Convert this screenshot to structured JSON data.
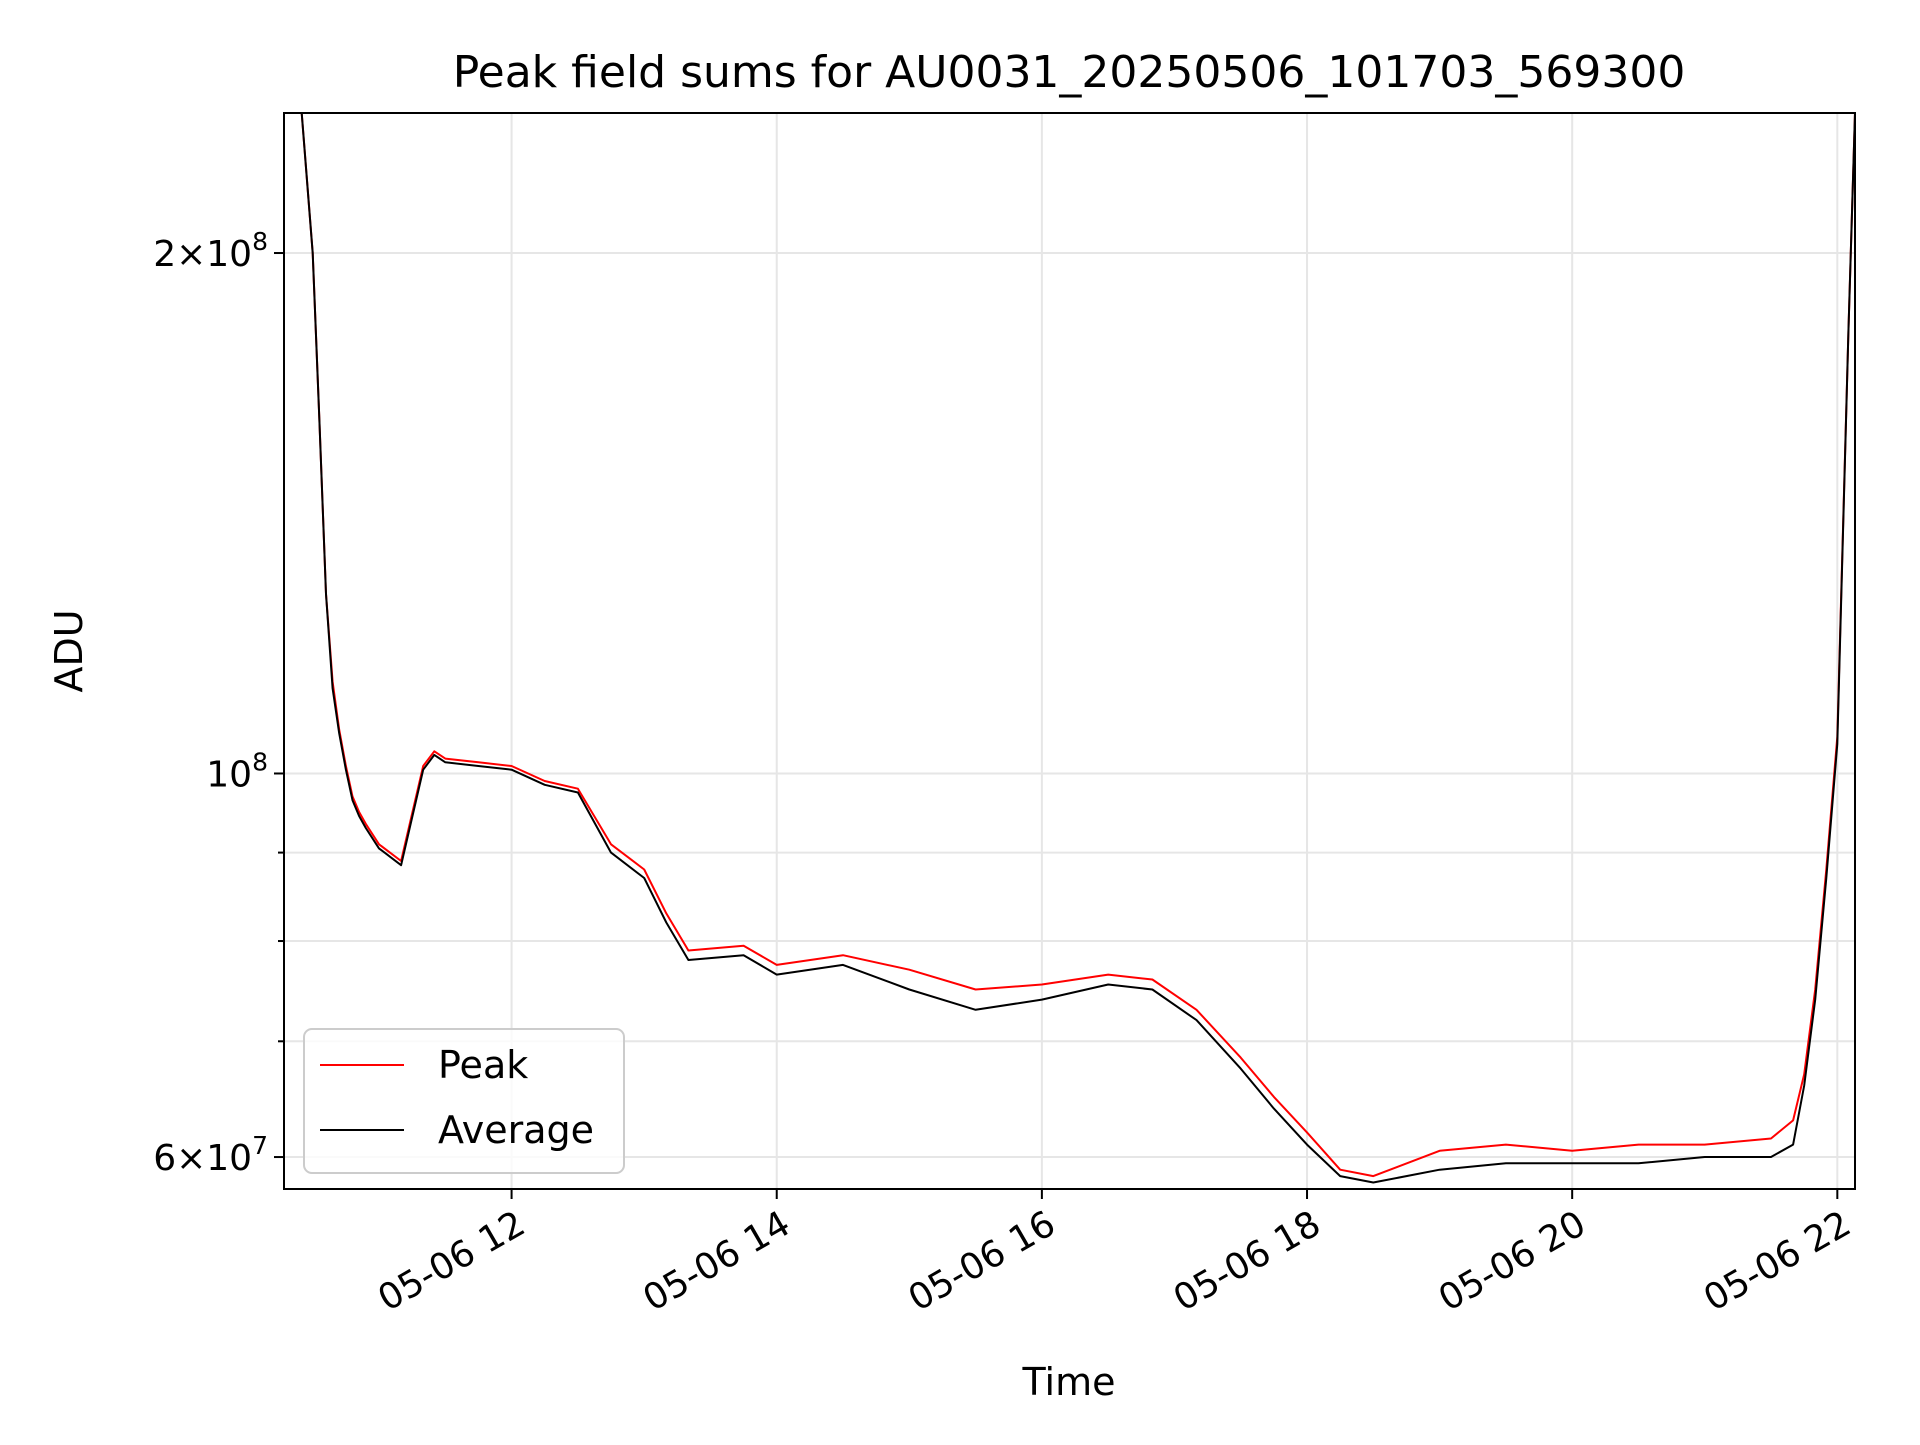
{
  "chart_data": {
    "type": "line",
    "title": "Peak field sums for AU0031_20250506_101703_569300",
    "xlabel": "Time",
    "ylabel": "ADU",
    "yscale": "log",
    "xlim": [
      "2025-05-06T10:17",
      "2025-05-06T22:08"
    ],
    "ylim": [
      57500000,
      241000000
    ],
    "grid": true,
    "legend_position": "lower-left",
    "x_ticks": [
      "2025-05-06T12:00",
      "2025-05-06T14:00",
      "2025-05-06T16:00",
      "2025-05-06T18:00",
      "2025-05-06T20:00",
      "2025-05-06T22:00"
    ],
    "x_tick_labels": [
      "05-06 12",
      "05-06 14",
      "05-06 16",
      "05-06 18",
      "05-06 20",
      "05-06 22"
    ],
    "y_major_ticks": [
      {
        "value": 200000000,
        "base": "2×10",
        "exp": "8"
      },
      {
        "value": 100000000,
        "base": "10",
        "exp": "8"
      },
      {
        "value": 60000000,
        "base": "6×10",
        "exp": "7"
      }
    ],
    "y_minor_ticks": [
      70000000,
      80000000,
      90000000
    ],
    "series": [
      {
        "name": "Peak",
        "color": "#ff0000",
        "x": [
          "2025-05-06T10:17",
          "2025-05-06T10:25",
          "2025-05-06T10:30",
          "2025-05-06T10:33",
          "2025-05-06T10:36",
          "2025-05-06T10:39",
          "2025-05-06T10:42",
          "2025-05-06T10:45",
          "2025-05-06T10:48",
          "2025-05-06T10:51",
          "2025-05-06T10:54",
          "2025-05-06T11:00",
          "2025-05-06T11:10",
          "2025-05-06T11:20",
          "2025-05-06T11:25",
          "2025-05-06T11:30",
          "2025-05-06T11:45",
          "2025-05-06T12:00",
          "2025-05-06T12:15",
          "2025-05-06T12:30",
          "2025-05-06T12:45",
          "2025-05-06T13:00",
          "2025-05-06T13:10",
          "2025-05-06T13:20",
          "2025-05-06T13:45",
          "2025-05-06T14:00",
          "2025-05-06T14:30",
          "2025-05-06T15:00",
          "2025-05-06T15:30",
          "2025-05-06T16:00",
          "2025-05-06T16:30",
          "2025-05-06T16:50",
          "2025-05-06T17:10",
          "2025-05-06T17:30",
          "2025-05-06T17:45",
          "2025-05-06T18:00",
          "2025-05-06T18:15",
          "2025-05-06T18:30",
          "2025-05-06T19:00",
          "2025-05-06T19:30",
          "2025-05-06T20:00",
          "2025-05-06T20:30",
          "2025-05-06T21:00",
          "2025-05-06T21:30",
          "2025-05-06T21:40",
          "2025-05-06T21:45",
          "2025-05-06T21:50",
          "2025-05-06T21:55",
          "2025-05-06T22:00",
          "2025-05-06T22:05",
          "2025-05-06T22:08"
        ],
        "values": [
          241000000,
          241000000,
          200000000,
          160000000,
          127000000,
          113000000,
          106000000,
          101000000,
          97000000,
          95000000,
          93500000,
          91000000,
          89000000,
          101000000,
          103000000,
          102000000,
          101500000,
          101000000,
          99000000,
          98000000,
          91000000,
          88000000,
          83000000,
          79000000,
          79500000,
          77500000,
          78500000,
          77000000,
          75000000,
          75500000,
          76500000,
          76000000,
          73000000,
          68500000,
          65000000,
          62000000,
          59000000,
          58500000,
          60500000,
          61000000,
          60500000,
          61000000,
          61000000,
          61500000,
          63000000,
          67000000,
          75000000,
          88000000,
          105000000,
          180000000,
          241000000
        ]
      },
      {
        "name": "Average",
        "color": "#000000",
        "x": [
          "2025-05-06T10:17",
          "2025-05-06T10:25",
          "2025-05-06T10:30",
          "2025-05-06T10:33",
          "2025-05-06T10:36",
          "2025-05-06T10:39",
          "2025-05-06T10:42",
          "2025-05-06T10:45",
          "2025-05-06T10:48",
          "2025-05-06T10:51",
          "2025-05-06T10:54",
          "2025-05-06T11:00",
          "2025-05-06T11:10",
          "2025-05-06T11:20",
          "2025-05-06T11:25",
          "2025-05-06T11:30",
          "2025-05-06T11:45",
          "2025-05-06T12:00",
          "2025-05-06T12:15",
          "2025-05-06T12:30",
          "2025-05-06T12:45",
          "2025-05-06T13:00",
          "2025-05-06T13:10",
          "2025-05-06T13:20",
          "2025-05-06T13:45",
          "2025-05-06T14:00",
          "2025-05-06T14:30",
          "2025-05-06T15:00",
          "2025-05-06T15:30",
          "2025-05-06T16:00",
          "2025-05-06T16:30",
          "2025-05-06T16:50",
          "2025-05-06T17:10",
          "2025-05-06T17:30",
          "2025-05-06T17:45",
          "2025-05-06T18:00",
          "2025-05-06T18:15",
          "2025-05-06T18:30",
          "2025-05-06T19:00",
          "2025-05-06T19:30",
          "2025-05-06T20:00",
          "2025-05-06T20:30",
          "2025-05-06T21:00",
          "2025-05-06T21:30",
          "2025-05-06T21:40",
          "2025-05-06T21:45",
          "2025-05-06T21:50",
          "2025-05-06T21:55",
          "2025-05-06T22:00",
          "2025-05-06T22:05",
          "2025-05-06T22:08"
        ],
        "values": [
          241000000,
          241000000,
          200000000,
          160000000,
          127000000,
          112000000,
          105500000,
          100500000,
          96500000,
          94500000,
          93000000,
          90500000,
          88500000,
          100500000,
          102500000,
          101500000,
          101000000,
          100500000,
          98500000,
          97500000,
          90000000,
          87000000,
          82000000,
          78000000,
          78500000,
          76500000,
          77500000,
          75000000,
          73000000,
          74000000,
          75500000,
          75000000,
          72000000,
          67500000,
          64000000,
          61000000,
          58500000,
          58000000,
          59000000,
          59500000,
          59500000,
          59500000,
          60000000,
          60000000,
          61000000,
          66000000,
          74000000,
          87000000,
          104000000,
          180000000,
          241000000
        ]
      }
    ]
  }
}
